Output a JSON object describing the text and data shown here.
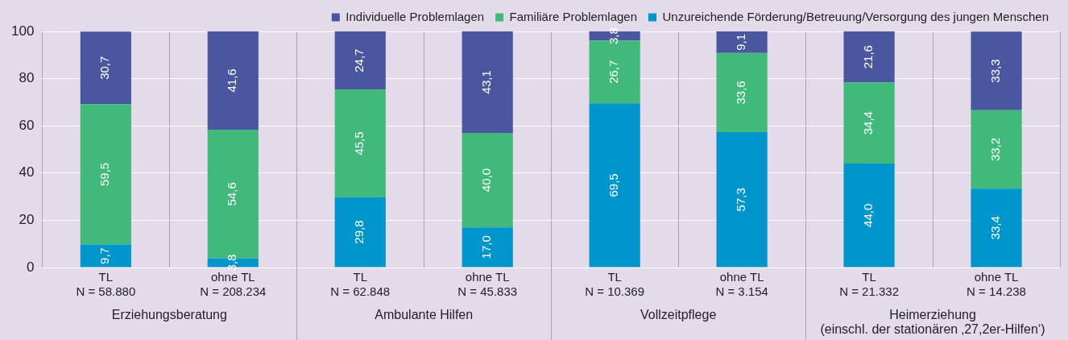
{
  "chart_data": {
    "type": "bar",
    "stacked": true,
    "categories": [
      "TL\nN = 58.880",
      "ohne TL\nN = 208.234",
      "TL\nN = 62.848",
      "ohne TL\nN = 45.833",
      "TL\nN = 10.369",
      "ohne TL\nN = 3.154",
      "TL\nN = 21.332",
      "ohne TL\nN = 14.238"
    ],
    "series": [
      {
        "name": "Unzureichende Förderung/Betreuung/Versorgung des jungen Menschen",
        "color": "#0096cc",
        "values": [
          9.7,
          3.8,
          29.8,
          17.0,
          69.5,
          57.3,
          44.0,
          33.4
        ],
        "value_labels": [
          "9,7",
          "3,8",
          "29,8",
          "17,0",
          "69,5",
          "57,3",
          "44,0",
          "33,4"
        ]
      },
      {
        "name": "Familiäre Problemlagen",
        "color": "#41b97a",
        "values": [
          59.5,
          54.6,
          45.5,
          40.0,
          26.7,
          33.6,
          34.4,
          33.2
        ],
        "value_labels": [
          "59,5",
          "54,6",
          "45,5",
          "40,0",
          "26,7",
          "33,6",
          "34,4",
          "33,2"
        ]
      },
      {
        "name": "Individuelle Problemlagen",
        "color": "#4a56a0",
        "values": [
          30.7,
          41.6,
          24.7,
          43.1,
          3.8,
          9.1,
          21.6,
          33.3
        ],
        "value_labels": [
          "30,7",
          "41,6",
          "24,7",
          "43,1",
          "3,8",
          "9,1",
          "21,6",
          "33,3"
        ]
      }
    ],
    "ylim": [
      0,
      100
    ],
    "yticks": [
      0,
      20,
      40,
      60,
      80,
      100
    ],
    "grid": true,
    "legend": "top right",
    "annotations": [
      "Erziehungsberatung",
      "Ambulante Hilfen",
      "Vollzeitpflege",
      "Heimerziehung\n(einschl. der stationären ‚27,2er-Hilfen‘)"
    ]
  }
}
